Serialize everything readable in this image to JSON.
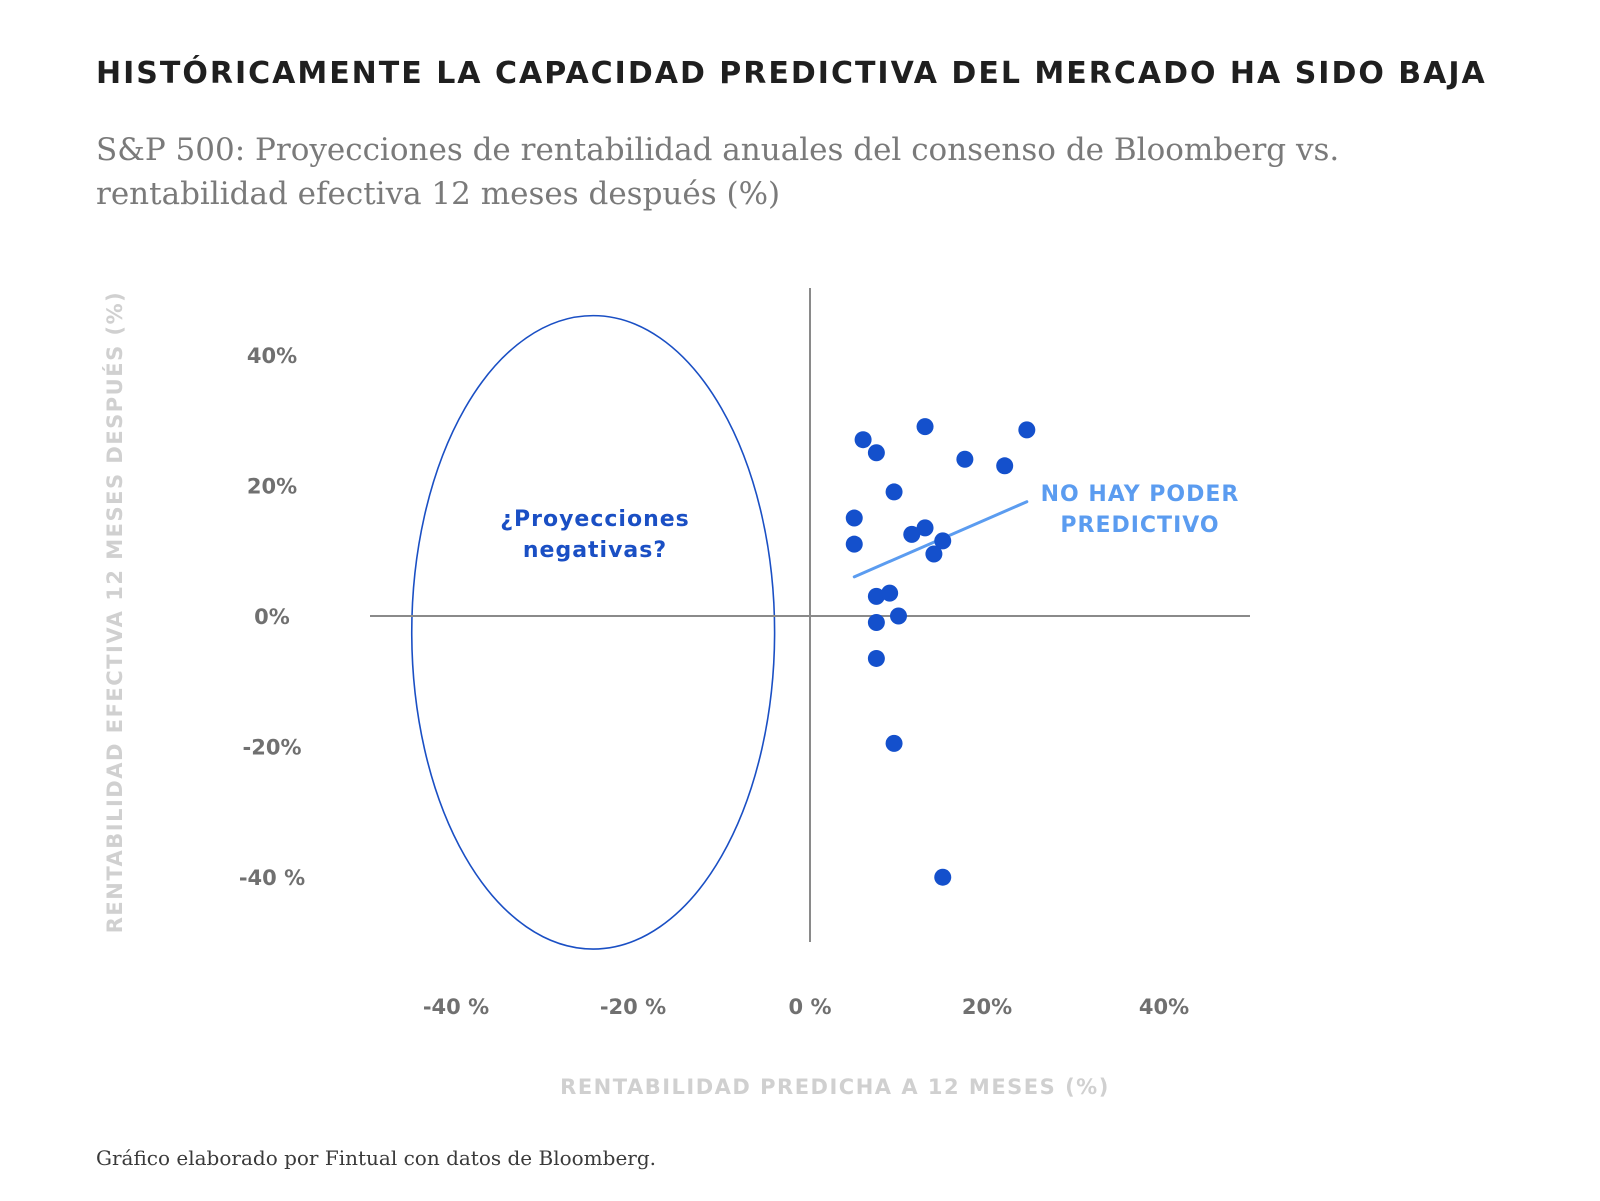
{
  "title": "HISTÓRICAMENTE LA CAPACIDAD PREDICTIVA DEL MERCADO HA SIDO BAJA",
  "subtitle": "S&P 500: Proyecciones de rentabilidad anuales del consenso de Bloomberg vs. rentabilidad efectiva 12 meses después (%)",
  "source": "Gráfico elaborado por Fintual con datos de Bloomberg.",
  "colors": {
    "points": "#1450cc",
    "trend_line": "#5b9cf0",
    "ellipse": "#1a4fc4",
    "axis_lines": "#8a8a8a",
    "ticks": "#707070",
    "axis_titles": "#d0d0d0"
  },
  "chart_data": {
    "type": "scatter",
    "xlabel": "RENTABILIDAD PREDICHA A 12 MESES (%)",
    "ylabel": "RENTABILIDAD EFECTIVA 12 MESES DESPUÉS (%)",
    "xlim": [
      -50,
      50
    ],
    "ylim": [
      -50,
      50
    ],
    "x_ticks": [
      {
        "value": -40,
        "label": "-40 %"
      },
      {
        "value": -20,
        "label": "-20 %"
      },
      {
        "value": 0,
        "label": "0 %"
      },
      {
        "value": 20,
        "label": "20%"
      },
      {
        "value": 40,
        "label": "40%"
      }
    ],
    "y_ticks": [
      {
        "value": 40,
        "label": "40%"
      },
      {
        "value": 20,
        "label": "20%"
      },
      {
        "value": 0,
        "label": "0%"
      },
      {
        "value": -20,
        "label": "-20%"
      },
      {
        "value": -40,
        "label": "-40 %"
      }
    ],
    "grid": false,
    "points": [
      {
        "x": 6,
        "y": 27
      },
      {
        "x": 7.5,
        "y": 25
      },
      {
        "x": 13,
        "y": 29
      },
      {
        "x": 17.5,
        "y": 24
      },
      {
        "x": 22,
        "y": 23
      },
      {
        "x": 24.5,
        "y": 28.5
      },
      {
        "x": 9.5,
        "y": 19
      },
      {
        "x": 5,
        "y": 15
      },
      {
        "x": 5,
        "y": 11
      },
      {
        "x": 11.5,
        "y": 12.5
      },
      {
        "x": 13,
        "y": 13.5
      },
      {
        "x": 15,
        "y": 11.5
      },
      {
        "x": 14,
        "y": 9.5
      },
      {
        "x": 7.5,
        "y": 3
      },
      {
        "x": 9,
        "y": 3.5
      },
      {
        "x": 7.5,
        "y": -1
      },
      {
        "x": 10,
        "y": 0
      },
      {
        "x": 7.5,
        "y": -6.5
      },
      {
        "x": 9.5,
        "y": -19.5
      },
      {
        "x": 15,
        "y": -40
      }
    ],
    "trend_line": {
      "x": [
        5,
        24.5
      ],
      "y": [
        6,
        17.5
      ]
    },
    "annotations": [
      {
        "text_lines": [
          "¿Proyecciones",
          "negativas?"
        ],
        "color": "#1a4fc4"
      },
      {
        "text_lines": [
          "NO HAY PODER",
          "PREDICTIVO"
        ],
        "color": "#5b9cf0"
      }
    ],
    "highlight_ellipse": {
      "cx": -24.5,
      "cy": -2.5,
      "rx": 20.5,
      "ry": 48.5
    }
  }
}
